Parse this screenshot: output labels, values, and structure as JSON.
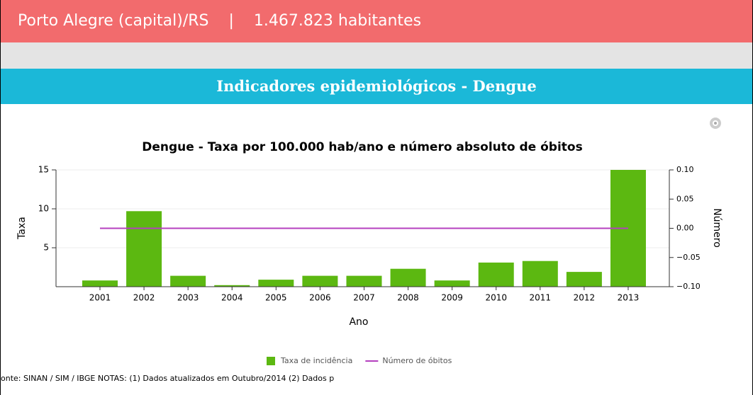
{
  "header": {
    "city": "Porto Alegre (capital)/RS",
    "separator": "|",
    "population": "1.467.823 habitantes"
  },
  "section_title": "Indicadores epidemiológicos - Dengue",
  "chart_data": {
    "type": "bar",
    "title": "Dengue - Taxa por 100.000 hab/ano e número absoluto de óbitos",
    "x_label": "Ano",
    "y_label": "Taxa",
    "y2_label": "Número",
    "categories": [
      "2001",
      "2002",
      "2003",
      "2004",
      "2005",
      "2006",
      "2007",
      "2008",
      "2009",
      "2010",
      "2011",
      "2012",
      "2013"
    ],
    "series": [
      {
        "name": "Taxa de incidência",
        "color": "#5cb811",
        "type": "bar",
        "values": [
          0.8,
          9.7,
          1.4,
          0.2,
          0.9,
          1.4,
          1.4,
          2.3,
          0.8,
          3.1,
          3.3,
          1.9,
          15.0
        ]
      },
      {
        "name": "Número de óbitos",
        "color": "#b43fbf",
        "type": "line",
        "axis": "y2",
        "values": [
          0,
          0,
          0,
          0,
          0,
          0,
          0,
          0,
          0,
          0,
          0,
          0,
          0
        ]
      }
    ],
    "ylim": [
      0,
      15
    ],
    "yticks": [
      5,
      10,
      15
    ],
    "y2lim": [
      -0.1,
      0.1
    ],
    "y2ticks": [
      {
        "value": 0.1,
        "label": "0.10"
      },
      {
        "value": 0.05,
        "label": "0.05"
      },
      {
        "value": 0,
        "label": "0.00"
      },
      {
        "value": -0.05,
        "label": "−0.05"
      },
      {
        "value": -0.1,
        "label": "−0.10"
      }
    ],
    "grid": true
  },
  "footer": "onte: SINAN / SIM / IBGE NOTAS: (1) Dados atualizados em Outubro/2014 (2) Dados p"
}
